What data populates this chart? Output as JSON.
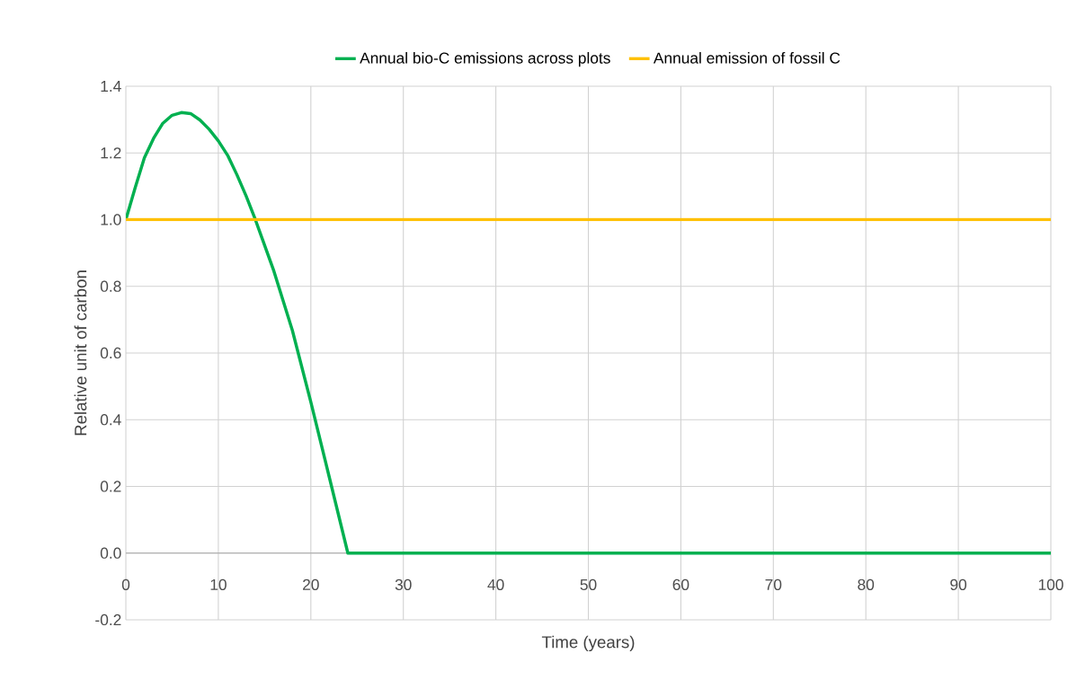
{
  "chart_data": {
    "type": "line",
    "xlabel": "Time (years)",
    "ylabel": "Relative unit of carbon",
    "xlim": [
      0,
      100
    ],
    "xticks": [
      0,
      10,
      20,
      30,
      40,
      50,
      60,
      70,
      80,
      90,
      100
    ],
    "ylim": [
      -0.2,
      1.4
    ],
    "yticks": [
      {
        "value": -0.2,
        "label": "-0.2"
      },
      {
        "value": 0,
        "label": "0.0"
      },
      {
        "value": 0.2,
        "label": "0.2"
      },
      {
        "value": 0.4,
        "label": "0.4"
      },
      {
        "value": 0.6,
        "label": "0.6"
      },
      {
        "value": 0.8,
        "label": "0.8"
      },
      {
        "value": 1.0,
        "label": "1.0"
      },
      {
        "value": 1.2,
        "label": "1.2"
      },
      {
        "value": 1.4,
        "label": "1.4"
      }
    ],
    "grid": true,
    "legend": "top",
    "marker": "none",
    "line_style": "solid",
    "series": [
      {
        "name": "Annual bio-C emissions across plots",
        "color": "#00b050",
        "x": [
          0,
          1,
          2,
          3,
          4,
          5,
          6,
          7,
          8,
          9,
          10,
          11,
          12,
          13,
          14,
          16,
          18,
          20,
          22,
          24,
          100
        ],
        "values": [
          1.0,
          1.095,
          1.185,
          1.244,
          1.289,
          1.313,
          1.321,
          1.318,
          1.299,
          1.271,
          1.236,
          1.193,
          1.135,
          1.071,
          1.0,
          0.846,
          0.668,
          0.453,
          0.227,
          0,
          0
        ]
      },
      {
        "name": "Annual emission of fossil C",
        "color": "#ffc000",
        "x": [
          0,
          100
        ],
        "values": [
          1,
          1
        ]
      }
    ]
  }
}
